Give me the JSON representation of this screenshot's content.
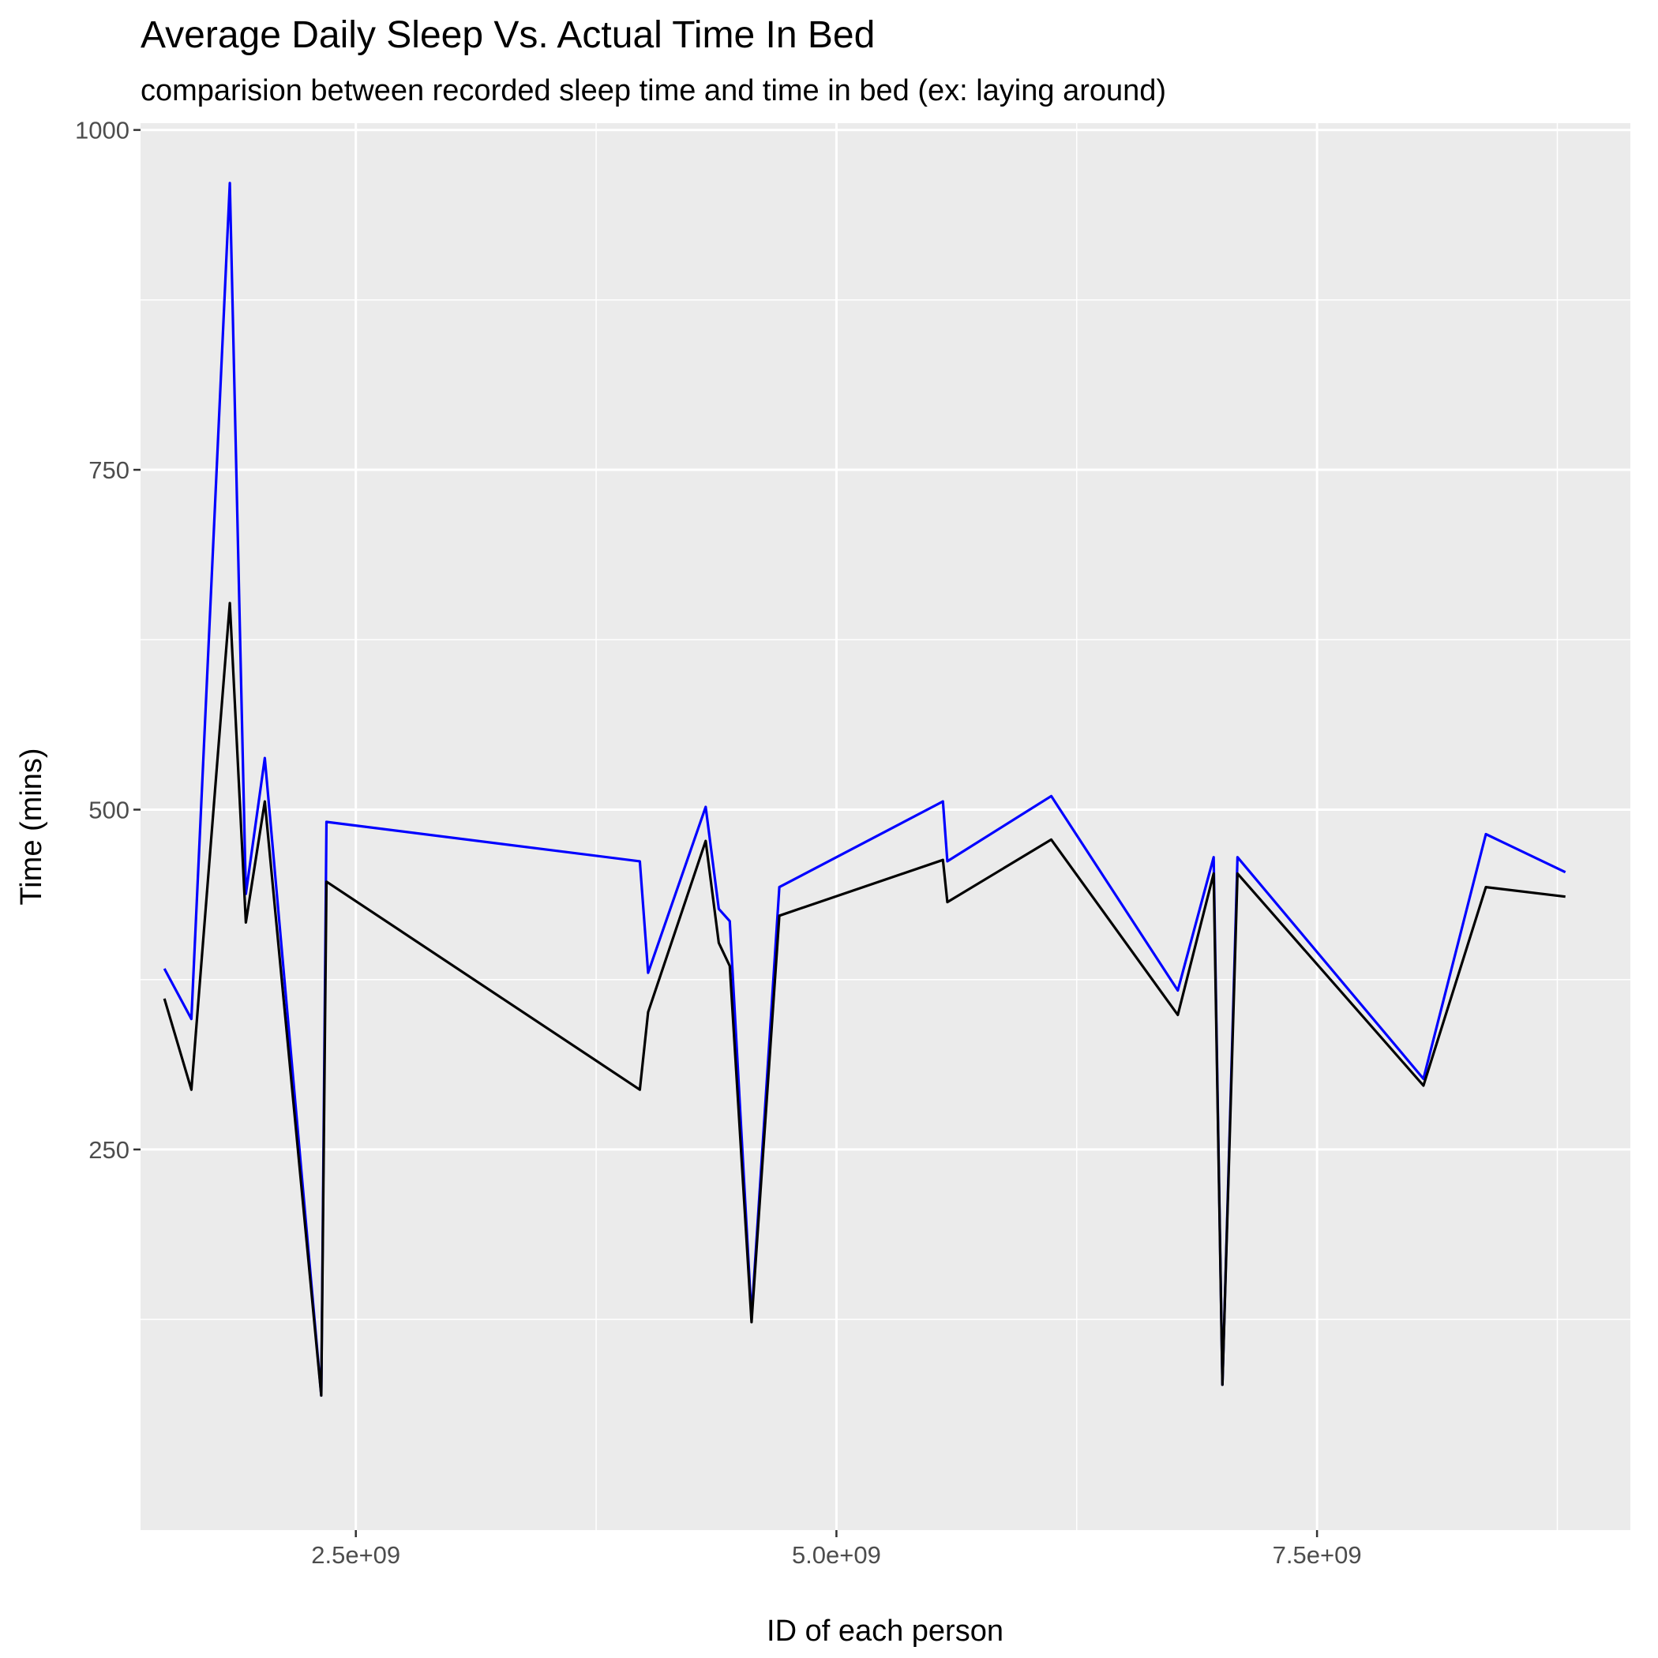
{
  "chart_data": {
    "type": "line",
    "title": "Average Daily Sleep Vs. Actual Time In Bed",
    "subtitle": "comparision between recorded sleep time and time in bed (ex: laying around)",
    "xlabel": "ID of each person",
    "ylabel": "Time (mins)",
    "xlim": [
      1380000000,
      9130000000
    ],
    "ylim": [
      -30,
      1005
    ],
    "x_ticks": [
      {
        "value": 2500000000,
        "label": "2.5e+09"
      },
      {
        "value": 5000000000,
        "label": "5.0e+09"
      },
      {
        "value": 7500000000,
        "label": "7.5e+09"
      }
    ],
    "x_minor_ticks": [
      1250000000,
      3750000000,
      6250000000,
      8750000000
    ],
    "y_ticks": [
      {
        "value": 250,
        "label": "250"
      },
      {
        "value": 500,
        "label": "500"
      },
      {
        "value": 750,
        "label": "750"
      },
      {
        "value": 1000,
        "label": "1000"
      }
    ],
    "y_minor_ticks": [
      125,
      375,
      625,
      875
    ],
    "grid": true,
    "legend": "none",
    "x": [
      1503960366,
      1644430081,
      1844505072,
      1927972279,
      2026352035,
      2320127002,
      2347167796,
      3977333714,
      4020332650,
      4319703577,
      4388161847,
      4445114986,
      4558609924,
      4702921684,
      5553957443,
      5577150313,
      6117666160,
      6775888955,
      6962181067,
      7007744171,
      7086361926,
      8053475328,
      8378563200,
      8792009665
    ],
    "series": [
      {
        "color": "#0000ff",
        "values": [
          383,
          346,
          961,
          438,
          538,
          69,
          491,
          462,
          380,
          502,
          427,
          418,
          127,
          443,
          506,
          462,
          510,
          367,
          465,
          77,
          465,
          302,
          482,
          454
        ]
      },
      {
        "color": "#000000",
        "values": [
          361,
          294,
          652,
          417,
          506,
          69,
          447,
          294,
          351,
          477,
          402,
          385,
          123,
          422,
          463,
          432,
          478,
          349,
          453,
          77,
          453,
          297,
          443,
          436
        ]
      }
    ]
  }
}
